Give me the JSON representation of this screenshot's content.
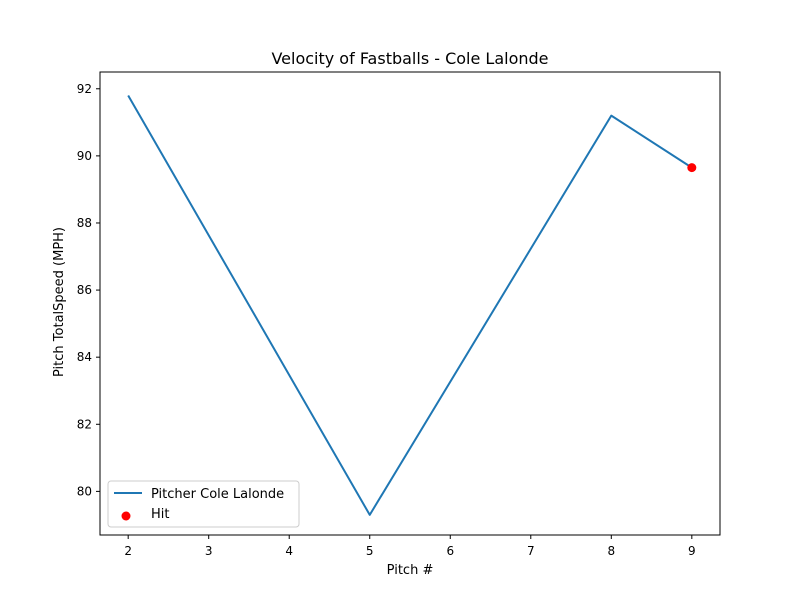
{
  "chart_data": {
    "type": "line",
    "title": "Velocity of Fastballs - Cole Lalonde",
    "xlabel": "Pitch #",
    "ylabel": "Pitch TotalSpeed (MPH)",
    "xlim": [
      1.65,
      9.35
    ],
    "ylim": [
      78.7,
      92.5
    ],
    "xticks": [
      2,
      3,
      4,
      5,
      6,
      7,
      8,
      9
    ],
    "yticks": [
      80,
      82,
      84,
      86,
      88,
      90,
      92
    ],
    "grid": false,
    "legend_position": "lower-left",
    "series": [
      {
        "name": "Pitcher Cole Lalonde",
        "kind": "line",
        "color": "#1f77b4",
        "x": [
          2,
          5,
          8,
          9
        ],
        "y": [
          91.8,
          79.3,
          91.2,
          89.65
        ]
      },
      {
        "name": "Hit",
        "kind": "scatter",
        "color": "#ff0000",
        "x": [
          9
        ],
        "y": [
          89.65
        ]
      }
    ]
  }
}
